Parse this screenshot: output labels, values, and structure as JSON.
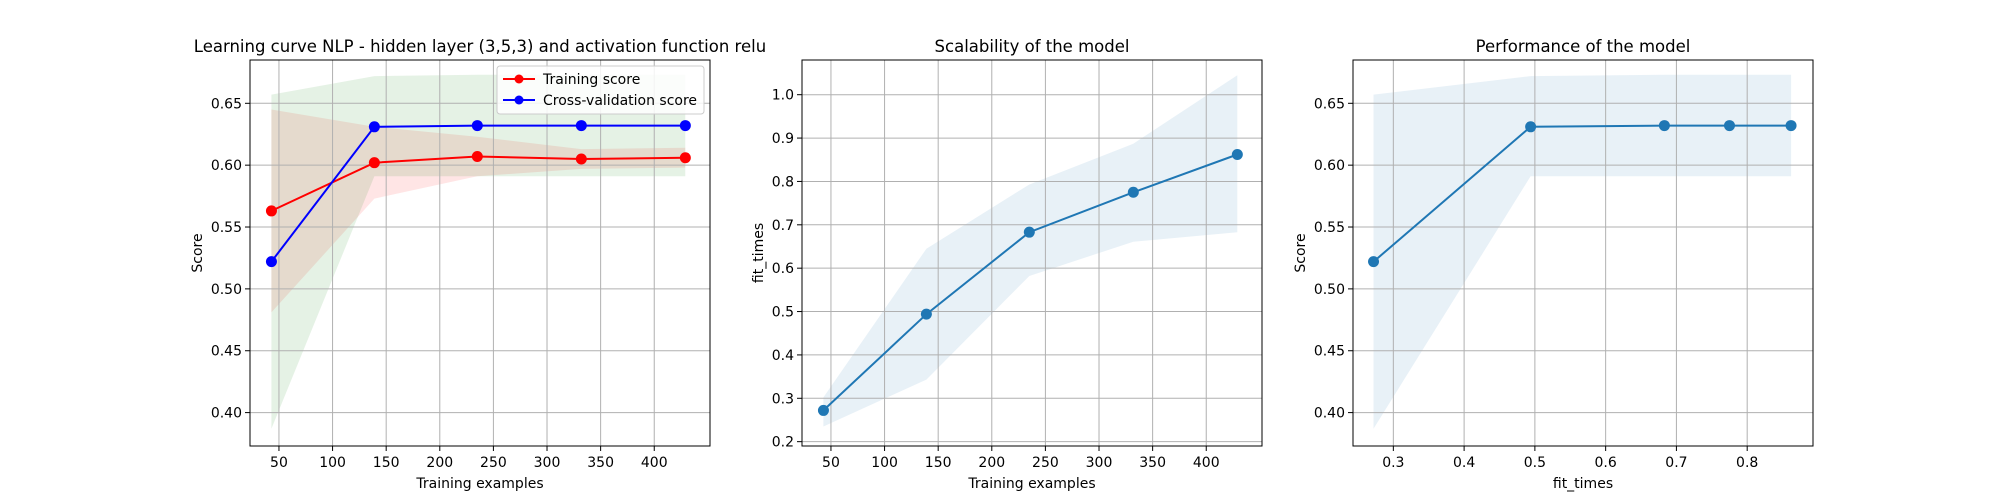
{
  "colors": {
    "train": "#ff0000",
    "cv": "#0000ff",
    "band_train": "#ff0000",
    "band_cv": "#008000",
    "series": "#1f77b4",
    "band_series": "#1f77b4"
  },
  "chart_data": [
    {
      "type": "line",
      "title": "Learning curve NLP - hidden layer (3,5,3) and activation function relu",
      "xlabel": "Training examples",
      "ylabel": "Score",
      "xlim": [
        23,
        452
      ],
      "ylim": [
        0.373,
        0.685
      ],
      "xticks": [
        50,
        100,
        150,
        200,
        250,
        300,
        350,
        400
      ],
      "yticks": [
        0.4,
        0.45,
        0.5,
        0.55,
        0.6,
        0.65
      ],
      "ytick_labels": [
        "0.40",
        "0.45",
        "0.50",
        "0.55",
        "0.60",
        "0.65"
      ],
      "grid": true,
      "legend": "top-right",
      "series": [
        {
          "name": "Training score",
          "color_key": "train",
          "x": [
            43,
            139,
            235,
            332,
            429
          ],
          "y": [
            0.563,
            0.602,
            0.607,
            0.605,
            0.606
          ],
          "band_low": [
            0.481,
            0.573,
            0.591,
            0.597,
            0.598
          ],
          "band_high": [
            0.645,
            0.631,
            0.623,
            0.613,
            0.614
          ]
        },
        {
          "name": "Cross-validation score",
          "color_key": "cv",
          "x": [
            43,
            139,
            235,
            332,
            429
          ],
          "y": [
            0.522,
            0.631,
            0.632,
            0.632,
            0.632
          ],
          "band_low": [
            0.387,
            0.591,
            0.591,
            0.591,
            0.591
          ],
          "band_high": [
            0.657,
            0.672,
            0.673,
            0.673,
            0.673
          ]
        }
      ]
    },
    {
      "type": "line",
      "title": "Scalability of the model",
      "xlabel": "Training examples",
      "ylabel": "fit_times",
      "xlim": [
        23,
        452
      ],
      "ylim": [
        0.19,
        1.08
      ],
      "xticks": [
        50,
        100,
        150,
        200,
        250,
        300,
        350,
        400
      ],
      "yticks": [
        0.2,
        0.3,
        0.4,
        0.5,
        0.6,
        0.7,
        0.8,
        0.9,
        1.0
      ],
      "ytick_labels": [
        "0.2",
        "0.3",
        "0.4",
        "0.5",
        "0.6",
        "0.7",
        "0.8",
        "0.9",
        "1.0"
      ],
      "grid": true,
      "series": [
        {
          "color_key": "series",
          "x": [
            43,
            139,
            235,
            332,
            429
          ],
          "y": [
            0.272,
            0.494,
            0.683,
            0.775,
            0.862
          ],
          "band_low": [
            0.235,
            0.343,
            0.582,
            0.661,
            0.683
          ],
          "band_high": [
            0.302,
            0.645,
            0.793,
            0.887,
            1.045
          ]
        }
      ]
    },
    {
      "type": "line",
      "title": "Performance of the model",
      "xlabel": "fit_times",
      "ylabel": "Score",
      "xlim": [
        0.243,
        0.893
      ],
      "ylim": [
        0.373,
        0.685
      ],
      "xticks": [
        0.3,
        0.4,
        0.5,
        0.6,
        0.7,
        0.8
      ],
      "xtick_labels": [
        "0.3",
        "0.4",
        "0.5",
        "0.6",
        "0.7",
        "0.8"
      ],
      "yticks": [
        0.4,
        0.45,
        0.5,
        0.55,
        0.6,
        0.65
      ],
      "ytick_labels": [
        "0.40",
        "0.45",
        "0.50",
        "0.55",
        "0.60",
        "0.65"
      ],
      "grid": true,
      "series": [
        {
          "color_key": "series",
          "x": [
            0.272,
            0.494,
            0.683,
            0.775,
            0.862
          ],
          "y": [
            0.522,
            0.631,
            0.632,
            0.632,
            0.632
          ],
          "band_low": [
            0.387,
            0.591,
            0.591,
            0.591,
            0.591
          ],
          "band_high": [
            0.657,
            0.672,
            0.673,
            0.673,
            0.673
          ]
        }
      ]
    }
  ]
}
